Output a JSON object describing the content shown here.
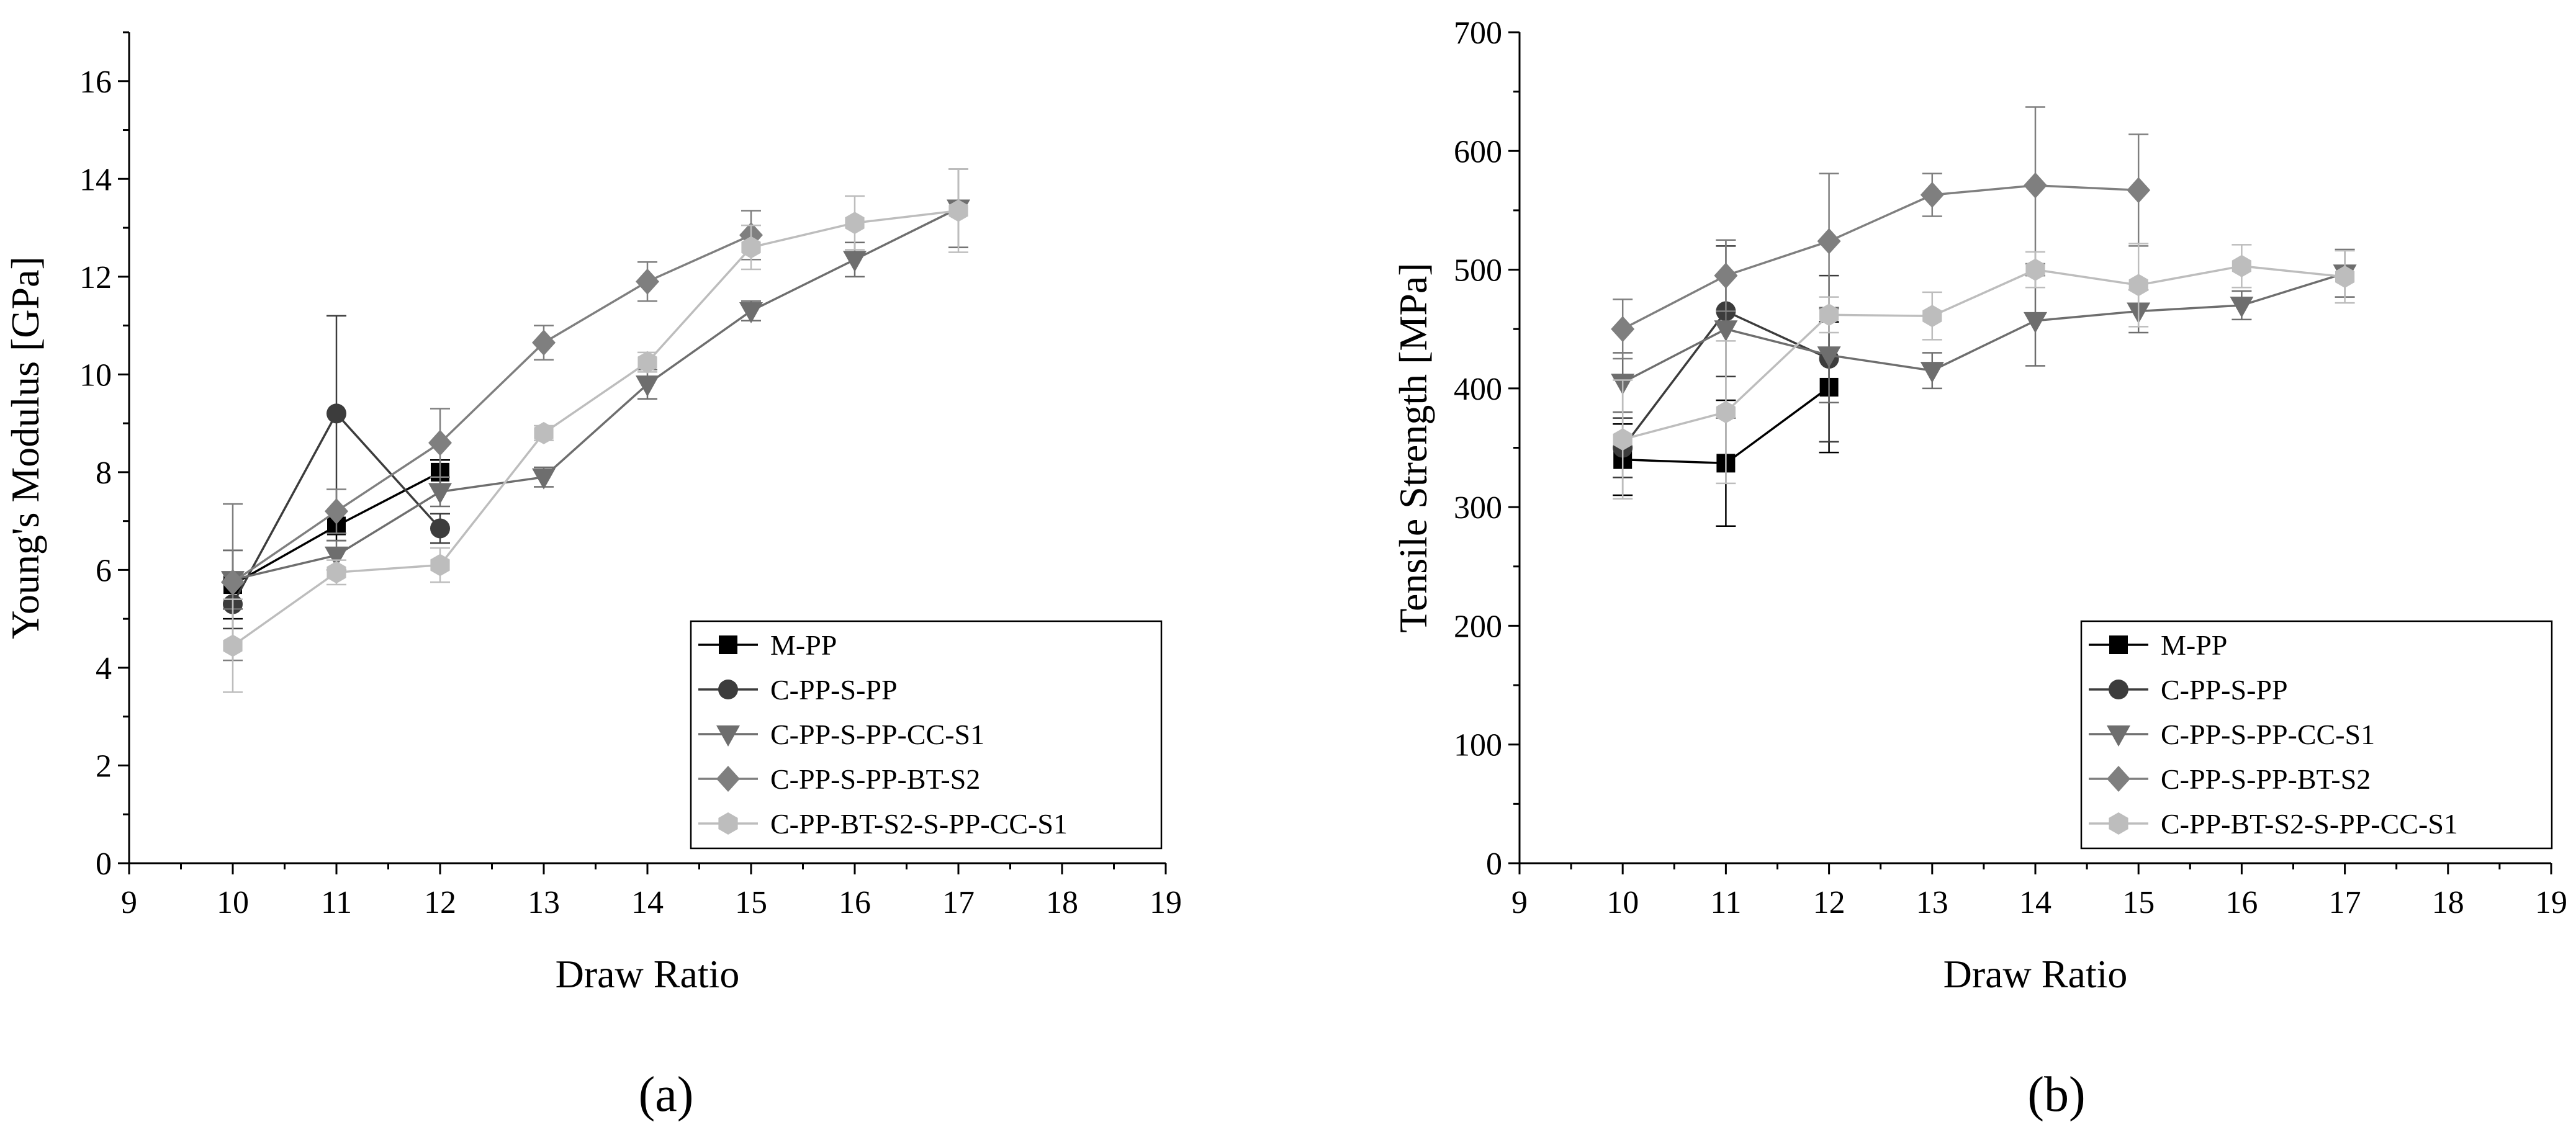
{
  "chart_data": [
    {
      "type": "line",
      "panel_label": "(a)",
      "title": "",
      "xlabel": "Draw Ratio",
      "ylabel": "Young's Modulus [GPa]",
      "xlim": [
        9,
        19
      ],
      "ylim": [
        0,
        17
      ],
      "xticks": [
        9,
        10,
        11,
        12,
        13,
        14,
        15,
        16,
        17,
        18,
        19
      ],
      "yticks": [
        0,
        2,
        4,
        6,
        8,
        10,
        12,
        14,
        16
      ],
      "grid": false,
      "legend_position": "bottom-right",
      "series": [
        {
          "name": "M-PP",
          "color": "#000000",
          "marker": "square",
          "x": [
            10,
            11,
            12
          ],
          "y": [
            5.7,
            6.9,
            8.0
          ],
          "err": [
            0.7,
            0.3,
            0.25
          ]
        },
        {
          "name": "C-PP-S-PP",
          "color": "#3c3c3c",
          "marker": "circle",
          "x": [
            10,
            11,
            12
          ],
          "y": [
            5.3,
            9.2,
            6.85
          ],
          "err": [
            0.5,
            2.0,
            0.3
          ]
        },
        {
          "name": "C-PP-S-PP-CC-S1",
          "color": "#6e6e6e",
          "marker": "triangle-down",
          "x": [
            10,
            11,
            12,
            13,
            14,
            15,
            16,
            17
          ],
          "y": [
            5.8,
            6.3,
            7.6,
            7.9,
            9.8,
            11.3,
            12.35,
            13.4
          ],
          "err": [
            0.6,
            0.3,
            0.3,
            0.2,
            0.3,
            0.2,
            0.35,
            0.8
          ]
        },
        {
          "name": "C-PP-S-PP-BT-S2",
          "color": "#7f7f7f",
          "marker": "diamond",
          "x": [
            10,
            11,
            12,
            13,
            14,
            15
          ],
          "y": [
            5.75,
            7.2,
            8.6,
            10.65,
            11.9,
            12.85
          ],
          "err": [
            1.6,
            0.45,
            0.7,
            0.35,
            0.4,
            0.5
          ]
        },
        {
          "name": "C-PP-BT-S2-S-PP-CC-S1",
          "color": "#bdbdbd",
          "marker": "hexagon",
          "x": [
            10,
            11,
            12,
            13,
            14,
            15,
            16,
            17
          ],
          "y": [
            4.45,
            5.95,
            6.1,
            8.8,
            10.25,
            12.6,
            13.1,
            13.35
          ],
          "err": [
            0.95,
            0.25,
            0.35,
            0.15,
            0.2,
            0.45,
            0.55,
            0.85
          ]
        }
      ]
    },
    {
      "type": "line",
      "panel_label": "(b)",
      "title": "",
      "xlabel": "Draw Ratio",
      "ylabel": "Tensile Strength [MPa]",
      "xlim": [
        9,
        19
      ],
      "ylim": [
        0,
        700
      ],
      "xticks": [
        9,
        10,
        11,
        12,
        13,
        14,
        15,
        16,
        17,
        18,
        19
      ],
      "yticks": [
        0,
        100,
        200,
        300,
        400,
        500,
        600,
        700
      ],
      "grid": false,
      "legend_position": "bottom-right",
      "series": [
        {
          "name": "M-PP",
          "color": "#000000",
          "marker": "square",
          "x": [
            10,
            11,
            12
          ],
          "y": [
            340,
            337,
            401
          ],
          "err": [
            30,
            53,
            55
          ]
        },
        {
          "name": "C-PP-S-PP",
          "color": "#3c3c3c",
          "marker": "circle",
          "x": [
            10,
            11,
            12
          ],
          "y": [
            350,
            465,
            425
          ],
          "err": [
            25,
            55,
            70
          ]
        },
        {
          "name": "C-PP-S-PP-CC-S1",
          "color": "#6e6e6e",
          "marker": "triangle-down",
          "x": [
            10,
            11,
            12,
            13,
            14,
            15,
            16,
            17
          ],
          "y": [
            405,
            450,
            428,
            415,
            457,
            465,
            470,
            497
          ],
          "err": [
            25,
            75,
            40,
            15,
            38,
            18,
            12,
            20
          ]
        },
        {
          "name": "C-PP-S-PP-BT-S2",
          "color": "#7f7f7f",
          "marker": "diamond",
          "x": [
            10,
            11,
            12,
            13,
            14,
            15
          ],
          "y": [
            450,
            495,
            524,
            563,
            571,
            567
          ],
          "err": [
            25,
            30,
            57,
            18,
            66,
            47
          ]
        },
        {
          "name": "C-PP-BT-S2-S-PP-CC-S1",
          "color": "#bdbdbd",
          "marker": "hexagon",
          "x": [
            10,
            11,
            12,
            13,
            14,
            15,
            16,
            17
          ],
          "y": [
            357,
            380,
            462,
            461,
            500,
            487,
            503,
            494
          ],
          "err": [
            50,
            60,
            15,
            20,
            15,
            35,
            18,
            22
          ]
        }
      ]
    }
  ]
}
